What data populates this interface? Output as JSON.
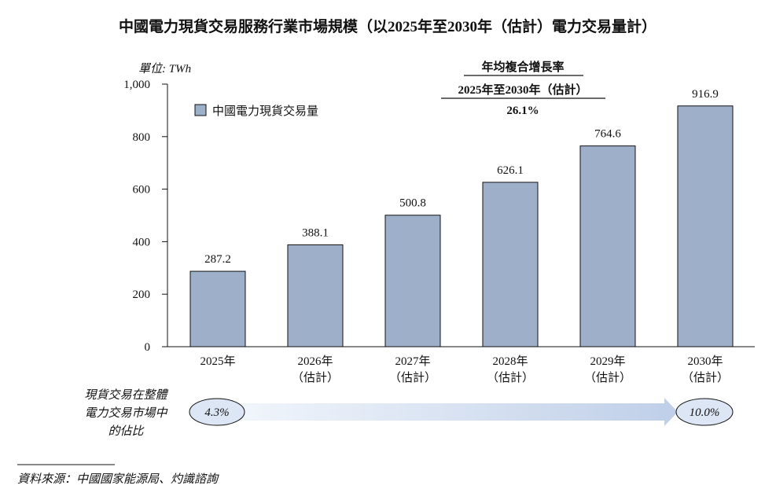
{
  "chart_data": {
    "type": "bar",
    "title": "中國電力現貨交易服務行業市場規模（以2025年至2030年（估計）電力交易量計）",
    "unit_label": "單位: TWh",
    "categories": [
      [
        "2025年"
      ],
      [
        "2026年",
        "（估計）"
      ],
      [
        "2027年",
        "（估計）"
      ],
      [
        "2028年",
        "（估計）"
      ],
      [
        "2029年",
        "（估計）"
      ],
      [
        "2030年",
        "（估計）"
      ]
    ],
    "series": [
      {
        "name": "中國電力現貨交易量",
        "values": [
          287.2,
          388.1,
          500.8,
          626.1,
          764.6,
          916.9
        ]
      }
    ],
    "value_labels": [
      "287.2",
      "388.1",
      "500.8",
      "626.1",
      "764.6",
      "916.9"
    ],
    "yticks": [
      "1,000",
      "800",
      "600",
      "400",
      "200",
      "0"
    ],
    "ytick_values": [
      1000,
      800,
      600,
      400,
      200,
      0
    ],
    "ylim": [
      0,
      1000
    ],
    "legend_position": "top-left",
    "grid": false,
    "bar_color": "#9dafc9",
    "bar_edge_color": "#111111",
    "cagr": {
      "title": "年均複合增長率",
      "period": "2025年至2030年（估計）",
      "value": "26.1%"
    },
    "share": {
      "label_lines": [
        "現貨交易在整體",
        "電力交易市場中",
        "的佔比"
      ],
      "start": "4.3%",
      "end": "10.0%",
      "arrow_color": "#c9d6ec",
      "ellipse_fill": "#dde6f4"
    },
    "source": "資料來源：中國國家能源局、灼識諮詢"
  }
}
